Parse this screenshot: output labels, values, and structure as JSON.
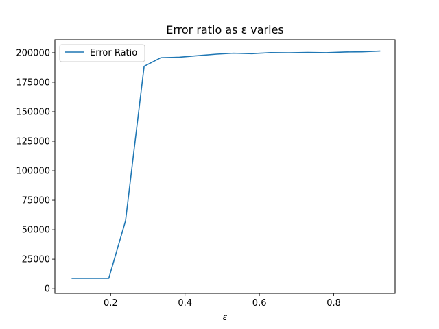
{
  "chart_data": {
    "type": "line",
    "title": "Error ratio as ε varies",
    "xlabel": "ε",
    "ylabel": "",
    "xlim": [
      0.05,
      0.965
    ],
    "ylim": [
      -4000,
      211000
    ],
    "x_ticks": [
      0.2,
      0.4,
      0.6,
      0.8
    ],
    "x_tick_labels": [
      "0.2",
      "0.4",
      "0.6",
      "0.8"
    ],
    "y_ticks": [
      0,
      25000,
      50000,
      75000,
      100000,
      125000,
      150000,
      175000,
      200000
    ],
    "y_tick_labels": [
      "0",
      "25000",
      "50000",
      "75000",
      "100000",
      "125000",
      "150000",
      "175000",
      "200000"
    ],
    "grid": false,
    "legend": {
      "position": "upper-left",
      "entries": [
        "Error Ratio"
      ]
    },
    "series": [
      {
        "name": "Error Ratio",
        "color": "#1f77b4",
        "x": [
          0.095,
          0.145,
          0.195,
          0.24,
          0.29,
          0.335,
          0.385,
          0.435,
          0.485,
          0.53,
          0.58,
          0.63,
          0.68,
          0.73,
          0.78,
          0.83,
          0.875,
          0.925
        ],
        "y": [
          8800,
          8800,
          8800,
          57500,
          188500,
          195800,
          196200,
          197500,
          198800,
          199600,
          199200,
          200100,
          199900,
          200200,
          200000,
          200600,
          200700,
          201400
        ]
      }
    ]
  }
}
